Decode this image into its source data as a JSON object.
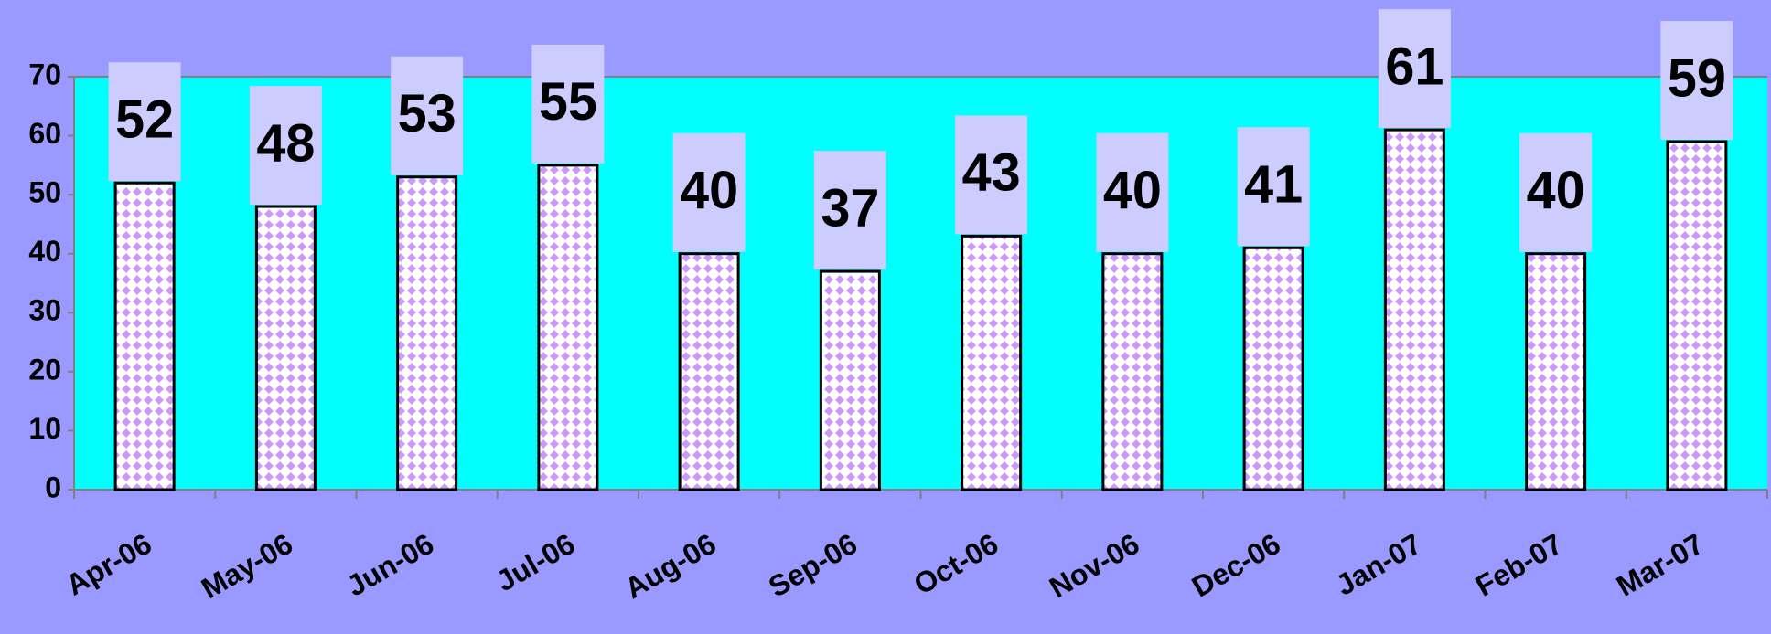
{
  "chart_data": {
    "type": "bar",
    "categories": [
      "Apr-06",
      "May-06",
      "Jun-06",
      "Jul-06",
      "Aug-06",
      "Sep-06",
      "Oct-06",
      "Nov-06",
      "Dec-06",
      "Jan-07",
      "Feb-07",
      "Mar-07"
    ],
    "values": [
      52,
      48,
      53,
      55,
      40,
      37,
      43,
      40,
      41,
      61,
      40,
      59
    ],
    "color": "#cc99ff",
    "ylim": [
      0,
      70
    ],
    "yticks": [
      0,
      10,
      20,
      30,
      40,
      50,
      60,
      70
    ],
    "grid": false
  }
}
